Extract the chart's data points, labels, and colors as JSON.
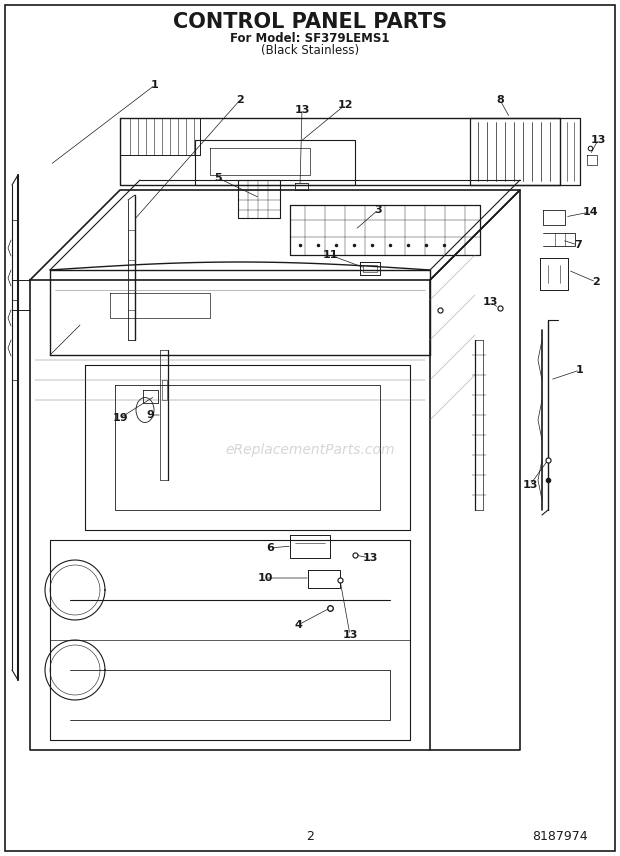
{
  "title": "CONTROL PANEL PARTS",
  "subtitle1": "For Model: SF379LEMS1",
  "subtitle2": "(Black Stainless)",
  "page_number": "2",
  "part_number": "8187974",
  "watermark": "eReplacementParts.com",
  "bg_color": "#ffffff",
  "line_color": "#1a1a1a",
  "title_fontsize": 15,
  "subtitle_fontsize": 8.5,
  "label_fontsize": 8,
  "watermark_fontsize": 10
}
